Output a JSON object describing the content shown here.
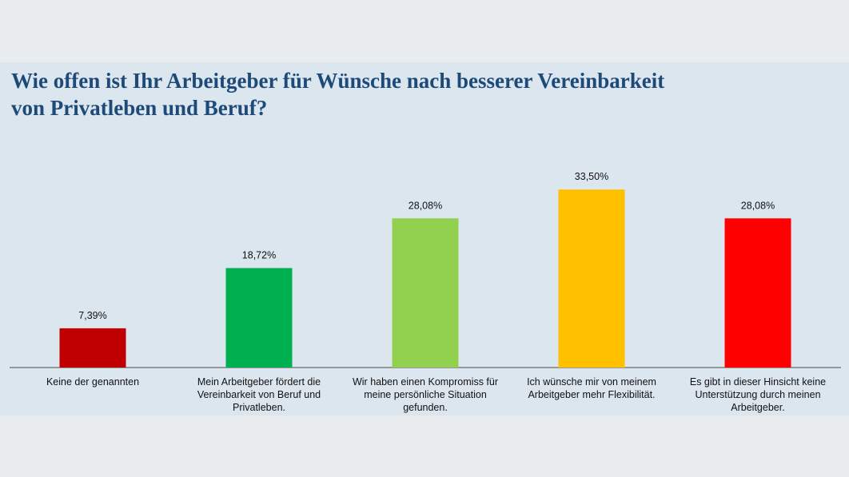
{
  "title_lines": [
    "Wie offen ist Ihr Arbeitgeber für Wünsche nach besserer Vereinbarkeit",
    "von Privatleben und Beruf?"
  ],
  "chart_data": {
    "type": "bar",
    "title": "Wie offen ist Ihr Arbeitgeber für Wünsche nach besserer Vereinbarkeit von Privatleben und Beruf?",
    "xlabel": "",
    "ylabel": "",
    "ylim": [
      0,
      40
    ],
    "grid": false,
    "categories": [
      "Keine der genannten",
      "Mein Arbeitgeber fördert die Vereinbarkeit von Beruf und Privatleben.",
      "Wir haben einen Kompromiss für meine persönliche Situation gefunden.",
      "Ich wünsche mir von meinem Arbeitgeber mehr Flexibilität.",
      "Es gibt in dieser Hinsicht keine Unterstützung durch meinen Arbeitgeber."
    ],
    "values": [
      7.39,
      18.72,
      28.08,
      33.5,
      28.08
    ],
    "value_labels": [
      "7,39%",
      "18,72%",
      "28,08%",
      "33,50%",
      "28,08%"
    ],
    "colors": [
      "#c00000",
      "#00b050",
      "#92d050",
      "#ffc000",
      "#ff0000"
    ]
  }
}
